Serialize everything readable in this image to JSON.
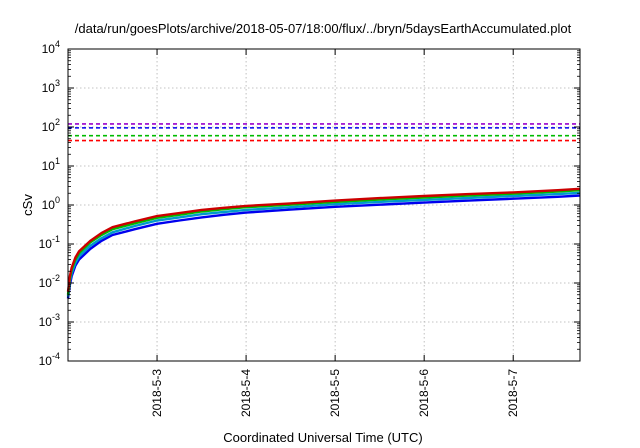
{
  "chart_data": {
    "type": "line",
    "title": "/data/run/goesPlots/archive/2018-05-07/18:00/flux/../bryn/5daysEarthAccumulated.plot",
    "xlabel": "Coordinated Universal Time (UTC)",
    "ylabel": "cSv",
    "x_scale": "time",
    "y_scale": "log",
    "xlim": [
      "2018-05-02T00:00",
      "2018-05-07T18:00"
    ],
    "ylim": [
      0.0001,
      10000
    ],
    "x_ticks": [
      "2018-5-3",
      "2018-5-4",
      "2018-5-5",
      "2018-5-6",
      "2018-5-7"
    ],
    "x_tick_dates": [
      "2018-05-03T00:00",
      "2018-05-04T00:00",
      "2018-05-05T00:00",
      "2018-05-06T00:00",
      "2018-05-07T00:00"
    ],
    "y_ticks": [
      {
        "base": "10",
        "exp": "-4"
      },
      {
        "base": "10",
        "exp": "-3"
      },
      {
        "base": "10",
        "exp": "-2"
      },
      {
        "base": "10",
        "exp": "-1"
      },
      {
        "base": "10",
        "exp": "0"
      },
      {
        "base": "10",
        "exp": "1"
      },
      {
        "base": "10",
        "exp": "2"
      },
      {
        "base": "10",
        "exp": "3"
      },
      {
        "base": "10",
        "exp": "4"
      }
    ],
    "grid": true,
    "x": [
      "2018-05-02T00:00",
      "2018-05-02T00:30",
      "2018-05-02T01:00",
      "2018-05-02T02:00",
      "2018-05-02T03:00",
      "2018-05-02T06:00",
      "2018-05-02T09:00",
      "2018-05-02T12:00",
      "2018-05-02T18:00",
      "2018-05-03T00:00",
      "2018-05-03T06:00",
      "2018-05-03T12:00",
      "2018-05-03T18:00",
      "2018-05-04T00:00",
      "2018-05-04T12:00",
      "2018-05-05T00:00",
      "2018-05-05T12:00",
      "2018-05-06T00:00",
      "2018-05-06T12:00",
      "2018-05-07T00:00",
      "2018-05-07T12:00",
      "2018-05-07T18:00"
    ],
    "series": [
      {
        "color": "#cc0000",
        "values": [
          0.006,
          0.015,
          0.025,
          0.045,
          0.065,
          0.12,
          0.19,
          0.27,
          0.38,
          0.52,
          0.62,
          0.75,
          0.85,
          0.95,
          1.1,
          1.3,
          1.5,
          1.7,
          1.9,
          2.1,
          2.4,
          2.6
        ]
      },
      {
        "color": "#00bb00",
        "values": [
          0.005,
          0.013,
          0.022,
          0.04,
          0.058,
          0.11,
          0.17,
          0.24,
          0.34,
          0.47,
          0.56,
          0.68,
          0.78,
          0.88,
          1.02,
          1.2,
          1.38,
          1.55,
          1.75,
          1.95,
          2.2,
          2.4
        ]
      },
      {
        "color": "#0099cc",
        "values": [
          0.0045,
          0.011,
          0.018,
          0.033,
          0.048,
          0.09,
          0.14,
          0.2,
          0.29,
          0.4,
          0.48,
          0.58,
          0.66,
          0.75,
          0.88,
          1.05,
          1.2,
          1.35,
          1.52,
          1.7,
          1.9,
          2.05
        ]
      },
      {
        "color": "#0000ee",
        "values": [
          0.004,
          0.009,
          0.015,
          0.028,
          0.04,
          0.075,
          0.12,
          0.17,
          0.24,
          0.33,
          0.4,
          0.48,
          0.56,
          0.64,
          0.76,
          0.9,
          1.02,
          1.15,
          1.3,
          1.45,
          1.62,
          1.75
        ]
      }
    ],
    "thresholds": [
      {
        "color": "#9900cc",
        "value": 120
      },
      {
        "color": "#0000ee",
        "value": 95
      },
      {
        "color": "#00bb00",
        "value": 60
      },
      {
        "color": "#ff0000",
        "value": 45
      }
    ]
  }
}
